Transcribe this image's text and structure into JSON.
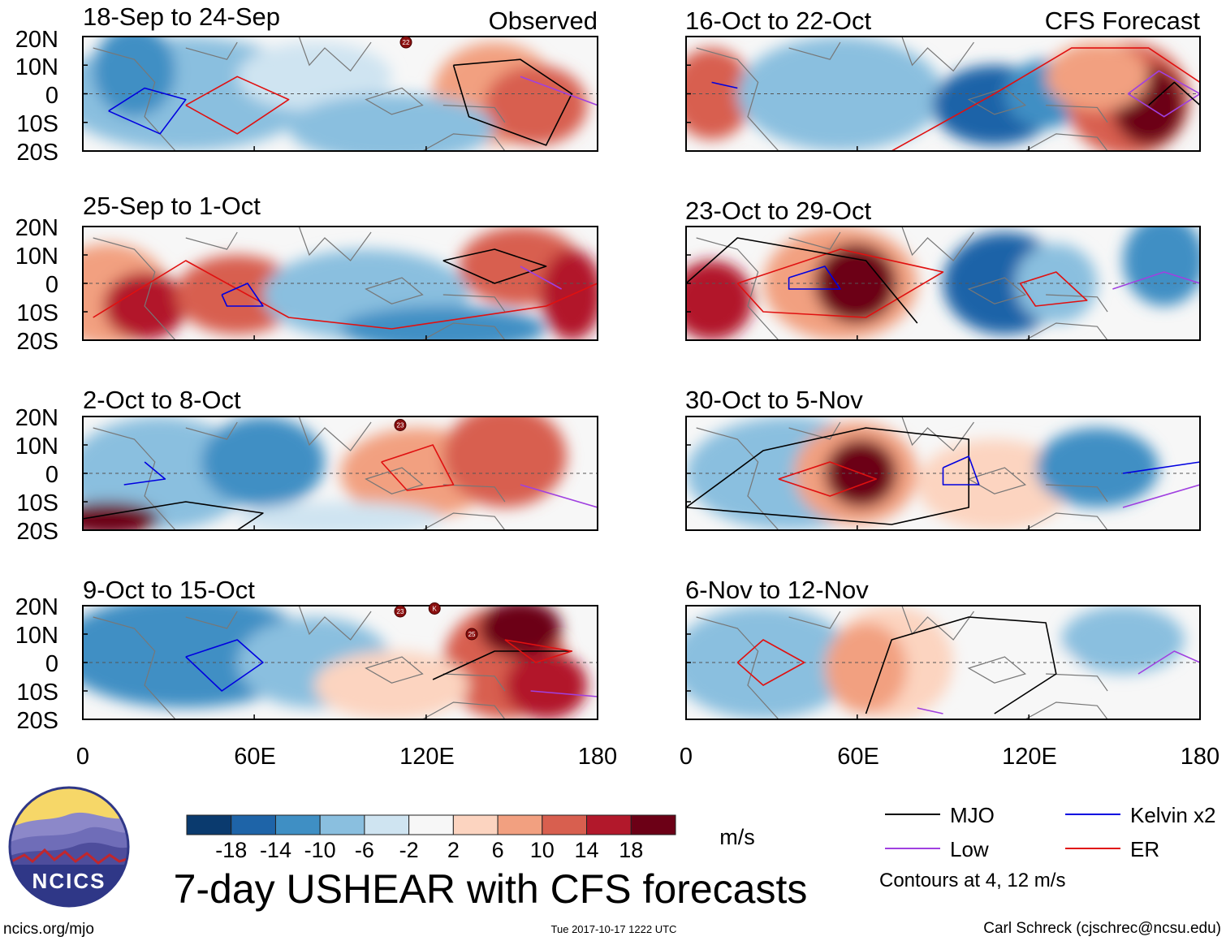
{
  "page": {
    "title": "7-day USHEAR with CFS forecasts",
    "url": "ncics.org/mjo",
    "timestamp": "Tue 2017-10-17 1222 UTC",
    "author": "Carl Schreck (cjschrec@ncsu.edu)",
    "logo_text": "NCICS"
  },
  "columns": {
    "observed_label": "Observed",
    "forecast_label": "CFS Forecast"
  },
  "chart_data": {
    "type": "heatmap",
    "variable": "7-day zonal wind shear (USHEAR)",
    "units": "m/s",
    "lat_ticks": [
      "20N",
      "10N",
      "0",
      "10S",
      "20S"
    ],
    "lon_ticks": [
      "0",
      "60E",
      "120E",
      "180"
    ],
    "lat_range": [
      -20,
      20
    ],
    "lon_range": [
      0,
      180
    ],
    "panels": [
      {
        "column": "Observed",
        "period": "18-Sep to 24-Sep"
      },
      {
        "column": "Observed",
        "period": "25-Sep to 1-Oct"
      },
      {
        "column": "Observed",
        "period": "2-Oct to 8-Oct"
      },
      {
        "column": "Observed",
        "period": "9-Oct to 15-Oct"
      },
      {
        "column": "CFS Forecast",
        "period": "16-Oct to 22-Oct"
      },
      {
        "column": "CFS Forecast",
        "period": "23-Oct to 29-Oct"
      },
      {
        "column": "CFS Forecast",
        "period": "30-Oct to 5-Nov"
      },
      {
        "column": "CFS Forecast",
        "period": "6-Nov to 12-Nov"
      }
    ],
    "colorbar": {
      "levels": [
        "-18",
        "-14",
        "-10",
        "-6",
        "-2",
        "2",
        "6",
        "10",
        "14",
        "18"
      ],
      "colors": [
        "#0a3a6e",
        "#1e64a8",
        "#3f8fc4",
        "#8abfdf",
        "#cfe4f1",
        "#f7f7f7",
        "#fcd4c0",
        "#f2a080",
        "#d85f4f",
        "#b2182b",
        "#6c0016"
      ],
      "units_label": "m/s"
    },
    "legend": [
      {
        "label": "MJO",
        "color": "#000000"
      },
      {
        "label": "Kelvin x2",
        "color": "#0000e0"
      },
      {
        "label": "Low",
        "color": "#a040e0"
      },
      {
        "label": "ER",
        "color": "#e01010"
      }
    ],
    "contour_note": "Contours at 4, 12 m/s",
    "storm_markers": [
      {
        "panel": 0,
        "label": "22",
        "lon": 113,
        "lat": 18
      },
      {
        "panel": 2,
        "label": "23",
        "lon": 111,
        "lat": 17
      },
      {
        "panel": 3,
        "label": "23",
        "lon": 111,
        "lat": 18
      },
      {
        "panel": 3,
        "label": "K",
        "lon": 123,
        "lat": 19
      },
      {
        "panel": 3,
        "label": "25",
        "lon": 136,
        "lat": 10
      }
    ]
  }
}
